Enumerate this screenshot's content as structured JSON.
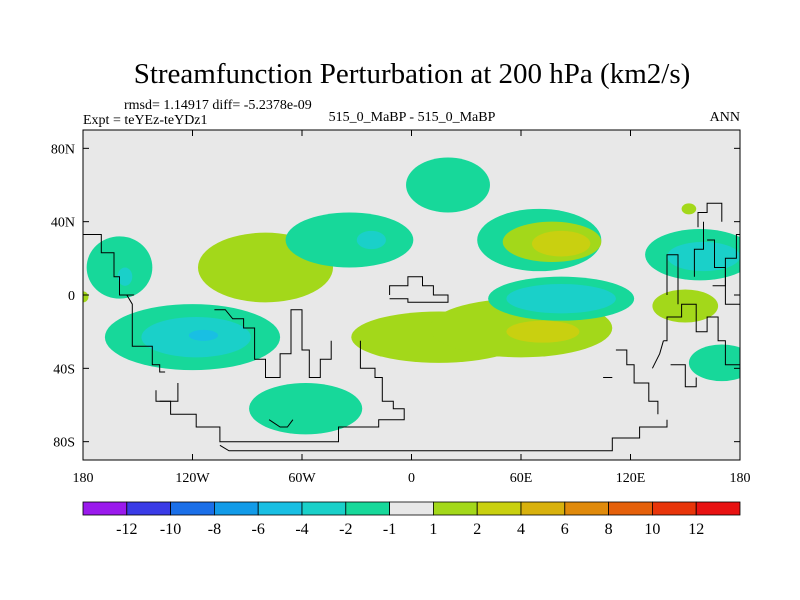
{
  "chart_data": {
    "type": "contour-map",
    "title": "Streamfunction Perturbation at 200 hPa (km2/s)",
    "stats": "rmsd= 1.14917 diff= -5.2378e-09",
    "experiment": "Expt = teYEz-teYDz1",
    "case": "515_0_MaBP - 515_0_MaBP",
    "period": "ANN",
    "lon_range": [
      -180,
      180
    ],
    "lat_range": [
      -90,
      90
    ],
    "x_ticks": [
      {
        "value": -180,
        "label": "180"
      },
      {
        "value": -120,
        "label": "120W"
      },
      {
        "value": -60,
        "label": "60W"
      },
      {
        "value": 0,
        "label": "0"
      },
      {
        "value": 60,
        "label": "60E"
      },
      {
        "value": 120,
        "label": "120E"
      },
      {
        "value": 180,
        "label": "180"
      }
    ],
    "y_ticks": [
      {
        "value": 80,
        "label": "80N"
      },
      {
        "value": 40,
        "label": "40N"
      },
      {
        "value": 0,
        "label": "0"
      },
      {
        "value": -40,
        "label": "40S"
      },
      {
        "value": -80,
        "label": "80S"
      }
    ],
    "colorbar": {
      "levels": [
        "-12",
        "-10",
        "-8",
        "-6",
        "-4",
        "-2",
        "-1",
        "1",
        "2",
        "4",
        "6",
        "8",
        "10",
        "12"
      ],
      "colors": [
        "#9a1aec",
        "#3a3be6",
        "#1b6fe8",
        "#129be8",
        "#19bfe3",
        "#1ad0c9",
        "#17d89a",
        "#e8e8e8",
        "#a3d81a",
        "#c9d010",
        "#d8b10d",
        "#e08a0b",
        "#e5600a",
        "#e8350a",
        "#e81212"
      ]
    },
    "blobs": [
      {
        "lon": -160,
        "lat": 15,
        "rx": 18,
        "ry": 17,
        "value": -1.5,
        "color": "#17d89a"
      },
      {
        "lon": -157,
        "lat": 10,
        "rx": 4,
        "ry": 5,
        "value": -2.5,
        "color": "#1ad0c9"
      },
      {
        "lon": -120,
        "lat": -23,
        "rx": 48,
        "ry": 18,
        "value": -1.5,
        "color": "#17d89a"
      },
      {
        "lon": -118,
        "lat": -23,
        "rx": 30,
        "ry": 11,
        "value": -2.5,
        "color": "#1ad0c9"
      },
      {
        "lon": -114,
        "lat": -22,
        "rx": 8,
        "ry": 3,
        "value": -4.5,
        "color": "#19bfe3"
      },
      {
        "lon": -80,
        "lat": 15,
        "rx": 37,
        "ry": 19,
        "value": 1.5,
        "color": "#a3d81a"
      },
      {
        "lon": -34,
        "lat": 30,
        "rx": 35,
        "ry": 15,
        "value": -1.5,
        "color": "#17d89a"
      },
      {
        "lon": -22,
        "lat": 30,
        "rx": 8,
        "ry": 5,
        "value": -2.5,
        "color": "#1ad0c9"
      },
      {
        "lon": 15,
        "lat": -23,
        "rx": 48,
        "ry": 14,
        "value": 1.5,
        "color": "#a3d81a"
      },
      {
        "lon": 60,
        "lat": -18,
        "rx": 50,
        "ry": 16,
        "value": 1.5,
        "color": "#a3d81a"
      },
      {
        "lon": 72,
        "lat": -20,
        "rx": 20,
        "ry": 6,
        "value": 2.5,
        "color": "#c9d010"
      },
      {
        "lon": 20,
        "lat": 60,
        "rx": 23,
        "ry": 15,
        "value": -1.5,
        "color": "#17d89a"
      },
      {
        "lon": 70,
        "lat": 30,
        "rx": 34,
        "ry": 17,
        "value": -1.5,
        "color": "#17d89a"
      },
      {
        "lon": 77,
        "lat": 29,
        "rx": 27,
        "ry": 11,
        "value": 1.5,
        "color": "#a3d81a"
      },
      {
        "lon": 82,
        "lat": 28,
        "rx": 16,
        "ry": 7,
        "value": 2.5,
        "color": "#c9d010"
      },
      {
        "lon": 82,
        "lat": -2,
        "rx": 40,
        "ry": 12,
        "value": -1.5,
        "color": "#17d89a"
      },
      {
        "lon": 82,
        "lat": -2,
        "rx": 30,
        "ry": 8,
        "value": -2.5,
        "color": "#1ad0c9"
      },
      {
        "lon": 158,
        "lat": 22,
        "rx": 30,
        "ry": 14,
        "value": -1.5,
        "color": "#17d89a"
      },
      {
        "lon": 160,
        "lat": 21,
        "rx": 20,
        "ry": 8,
        "value": -2.5,
        "color": "#1ad0c9"
      },
      {
        "lon": 170,
        "lat": -37,
        "rx": 18,
        "ry": 10,
        "value": -1.5,
        "color": "#17d89a"
      },
      {
        "lon": 150,
        "lat": -6,
        "rx": 18,
        "ry": 9,
        "value": 1.5,
        "color": "#a3d81a"
      },
      {
        "lon": 152,
        "lat": 47,
        "rx": 4,
        "ry": 3,
        "value": 1.5,
        "color": "#a3d81a"
      },
      {
        "lon": -58,
        "lat": -62,
        "rx": 31,
        "ry": 14,
        "value": -1.5,
        "color": "#17d89a"
      },
      {
        "lon": -180,
        "lat": -1,
        "rx": 3,
        "ry": 3,
        "value": 1.5,
        "color": "#a3d81a"
      }
    ],
    "coastlines": [
      [
        [
          -180,
          33
        ],
        [
          -170,
          33
        ],
        [
          -170,
          23
        ],
        [
          -163,
          23
        ],
        [
          -163,
          10
        ],
        [
          -160,
          10
        ],
        [
          -160,
          0
        ],
        [
          -152,
          0
        ]
      ],
      [
        [
          -156,
          0
        ],
        [
          -153,
          -5
        ],
        [
          -153,
          -28
        ],
        [
          -142,
          -28
        ],
        [
          -142,
          -38
        ],
        [
          -138,
          -38
        ],
        [
          -138,
          -42
        ],
        [
          -135,
          -42
        ]
      ],
      [
        [
          -140,
          -52
        ],
        [
          -140,
          -58
        ],
        [
          -128,
          -58
        ],
        [
          -128,
          -48
        ]
      ],
      [
        [
          -108,
          -8
        ],
        [
          -102,
          -8
        ],
        [
          -98,
          -13
        ],
        [
          -92,
          -13
        ],
        [
          -92,
          -18
        ],
        [
          -86,
          -18
        ],
        [
          -86,
          -35
        ],
        [
          -80,
          -35
        ],
        [
          -80,
          -45
        ],
        [
          -72,
          -45
        ],
        [
          -72,
          -32
        ],
        [
          -66,
          -32
        ],
        [
          -66,
          -8
        ],
        [
          -60,
          -8
        ],
        [
          -60,
          -30
        ],
        [
          -56,
          -30
        ],
        [
          -56,
          -45
        ],
        [
          -50,
          -45
        ],
        [
          -50,
          -35
        ],
        [
          -44,
          -35
        ],
        [
          -44,
          -25
        ]
      ],
      [
        [
          -28,
          -25
        ],
        [
          -28,
          -40
        ],
        [
          -20,
          -40
        ],
        [
          -20,
          -45
        ],
        [
          -16,
          -45
        ],
        [
          -16,
          -58
        ],
        [
          -10,
          -58
        ],
        [
          -10,
          -62
        ],
        [
          -4,
          -62
        ],
        [
          -4,
          -68
        ],
        [
          -18,
          -68
        ],
        [
          -18,
          -72
        ],
        [
          -40,
          -72
        ],
        [
          -40,
          -80
        ],
        [
          -105,
          -80
        ],
        [
          -105,
          -72
        ],
        [
          -118,
          -72
        ],
        [
          -118,
          -65
        ],
        [
          -132,
          -65
        ],
        [
          -132,
          -58
        ],
        [
          -138,
          -58
        ]
      ],
      [
        [
          -78,
          -68
        ],
        [
          -72,
          -72
        ],
        [
          -68,
          -72
        ],
        [
          -65,
          -68
        ]
      ],
      [
        [
          -105,
          -82
        ],
        [
          -100,
          -85
        ],
        [
          110,
          -85
        ],
        [
          110,
          -78
        ],
        [
          125,
          -78
        ],
        [
          125,
          -72
        ],
        [
          140,
          -72
        ],
        [
          140,
          -68
        ]
      ],
      [
        [
          -12,
          0
        ],
        [
          -12,
          5
        ],
        [
          -2,
          5
        ],
        [
          -2,
          10
        ],
        [
          6,
          10
        ],
        [
          6,
          5
        ],
        [
          12,
          5
        ],
        [
          12,
          0
        ],
        [
          20,
          0
        ],
        [
          20,
          -4
        ],
        [
          -2,
          -4
        ],
        [
          -2,
          -2
        ],
        [
          -12,
          -2
        ]
      ],
      [
        [
          112,
          -30
        ],
        [
          118,
          -30
        ],
        [
          118,
          -38
        ],
        [
          122,
          -38
        ],
        [
          122,
          -48
        ],
        [
          130,
          -48
        ],
        [
          130,
          -58
        ],
        [
          135,
          -58
        ],
        [
          135,
          -65
        ]
      ],
      [
        [
          105,
          -45
        ],
        [
          110,
          -45
        ]
      ],
      [
        [
          138,
          -25
        ],
        [
          140,
          -25
        ],
        [
          140,
          -12
        ],
        [
          148,
          -12
        ],
        [
          148,
          -5
        ],
        [
          156,
          -5
        ],
        [
          156,
          -20
        ],
        [
          162,
          -20
        ],
        [
          162,
          -12
        ],
        [
          168,
          -12
        ],
        [
          168,
          -25
        ],
        [
          172,
          -25
        ],
        [
          172,
          -38
        ],
        [
          176,
          -38
        ],
        [
          180,
          -38
        ]
      ],
      [
        [
          138,
          -25
        ],
        [
          136,
          -32
        ],
        [
          132,
          -40
        ]
      ],
      [
        [
          142,
          -38
        ],
        [
          150,
          -38
        ],
        [
          150,
          -50
        ],
        [
          156,
          -50
        ],
        [
          156,
          -45
        ]
      ],
      [
        [
          140,
          0
        ],
        [
          140,
          22
        ],
        [
          146,
          22
        ],
        [
          146,
          -5
        ]
      ],
      [
        [
          155,
          10
        ],
        [
          155,
          25
        ],
        [
          160,
          25
        ],
        [
          160,
          40
        ]
      ],
      [
        [
          162,
          30
        ],
        [
          166,
          30
        ],
        [
          166,
          15
        ],
        [
          172,
          15
        ],
        [
          172,
          -5
        ],
        [
          180,
          -5
        ]
      ],
      [
        [
          157,
          37
        ],
        [
          157,
          45
        ],
        [
          162,
          45
        ],
        [
          162,
          50
        ],
        [
          170,
          50
        ],
        [
          170,
          40
        ]
      ],
      [
        [
          165,
          5
        ],
        [
          172,
          5
        ],
        [
          172,
          20
        ],
        [
          178,
          20
        ],
        [
          178,
          33
        ],
        [
          180,
          33
        ]
      ]
    ]
  }
}
